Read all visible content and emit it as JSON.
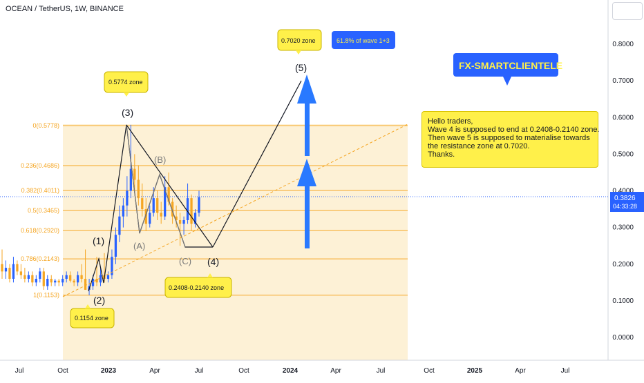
{
  "header": {
    "title": "OCEAN / TetherUS, 1W, BINANCE"
  },
  "price_axis": {
    "ticks": [
      "0.8000",
      "0.7000",
      "0.6000",
      "0.5000",
      "0.4000",
      "0.3000",
      "0.2000",
      "0.1000",
      "0.0000"
    ],
    "current_price": "0.3826",
    "countdown": "04:33:28"
  },
  "time_axis": {
    "ticks": [
      "Jul",
      "Oct",
      "2023",
      "Apr",
      "Jul",
      "Oct",
      "2024",
      "Apr",
      "Jul",
      "Oct",
      "2025",
      "Apr",
      "Jul"
    ]
  },
  "fib_levels": [
    {
      "label": "0(0.5778)",
      "value": 0.5778
    },
    {
      "label": "0.236(0.4686)",
      "value": 0.4686
    },
    {
      "label": "0.382(0.4011)",
      "value": 0.4011
    },
    {
      "label": "0.5(0.3465)",
      "value": 0.3465
    },
    {
      "label": "0.618(0.2920)",
      "value": 0.292
    },
    {
      "label": "0.786(0.2143)",
      "value": 0.2143
    },
    {
      "label": "1(0.1153)",
      "value": 0.1153
    }
  ],
  "wave_labels": {
    "w1": "(1)",
    "w2": "(2)",
    "w3": "(3)",
    "w4": "(4)",
    "w5": "(5)",
    "wa": "(A)",
    "wb": "(B)",
    "wc": "(C)"
  },
  "callouts": {
    "zone_0702": "0.7020 zone",
    "fib_618": "61.8% of wave 1+3",
    "zone_0577": "0.5774 zone",
    "zone_0115": "0.1154 zone",
    "zone_w4": "0.2408-0.2140 zone",
    "brand": "FX-SMARTCLIENTELE"
  },
  "note": {
    "lines": [
      "Hello traders,",
      "Wave 4 is supposed to end at 0.2408-0.2140 zone.",
      "Then wave 5 is supposed to materialise towards",
      "the resistance zone at 0.7020.",
      "Thanks."
    ]
  },
  "colors": {
    "up": "#26a69a",
    "up_candle": "#2962ff",
    "down": "#f5a623",
    "fib": "#f5a623",
    "fib_fill": "#fdf1d6",
    "arrow": "#2979ff",
    "callout_yellow": "#fff04a",
    "callout_blue": "#2962ff",
    "price_tag": "#2962ff"
  },
  "chart_data": {
    "type": "candlestick",
    "symbol": "OCEAN / TetherUS",
    "timeframe": "1W",
    "exchange": "BINANCE",
    "ylim": [
      0,
      0.88
    ],
    "current_price": 0.3826,
    "candles": [
      {
        "o": 0.2,
        "h": 0.24,
        "l": 0.16,
        "c": 0.18
      },
      {
        "o": 0.18,
        "h": 0.21,
        "l": 0.16,
        "c": 0.19
      },
      {
        "o": 0.19,
        "h": 0.2,
        "l": 0.15,
        "c": 0.16
      },
      {
        "o": 0.16,
        "h": 0.22,
        "l": 0.15,
        "c": 0.2
      },
      {
        "o": 0.2,
        "h": 0.21,
        "l": 0.17,
        "c": 0.18
      },
      {
        "o": 0.18,
        "h": 0.2,
        "l": 0.16,
        "c": 0.17
      },
      {
        "o": 0.17,
        "h": 0.19,
        "l": 0.15,
        "c": 0.16
      },
      {
        "o": 0.16,
        "h": 0.18,
        "l": 0.15,
        "c": 0.17
      },
      {
        "o": 0.17,
        "h": 0.18,
        "l": 0.14,
        "c": 0.15
      },
      {
        "o": 0.15,
        "h": 0.17,
        "l": 0.14,
        "c": 0.16
      },
      {
        "o": 0.16,
        "h": 0.19,
        "l": 0.15,
        "c": 0.18
      },
      {
        "o": 0.18,
        "h": 0.19,
        "l": 0.13,
        "c": 0.14
      },
      {
        "o": 0.14,
        "h": 0.17,
        "l": 0.13,
        "c": 0.16
      },
      {
        "o": 0.16,
        "h": 0.17,
        "l": 0.14,
        "c": 0.15
      },
      {
        "o": 0.15,
        "h": 0.16,
        "l": 0.14,
        "c": 0.155
      },
      {
        "o": 0.155,
        "h": 0.16,
        "l": 0.14,
        "c": 0.15
      },
      {
        "o": 0.15,
        "h": 0.17,
        "l": 0.14,
        "c": 0.16
      },
      {
        "o": 0.16,
        "h": 0.18,
        "l": 0.15,
        "c": 0.17
      },
      {
        "o": 0.17,
        "h": 0.18,
        "l": 0.15,
        "c": 0.155
      },
      {
        "o": 0.155,
        "h": 0.16,
        "l": 0.14,
        "c": 0.15
      },
      {
        "o": 0.15,
        "h": 0.18,
        "l": 0.14,
        "c": 0.17
      },
      {
        "o": 0.17,
        "h": 0.2,
        "l": 0.15,
        "c": 0.16
      },
      {
        "o": 0.16,
        "h": 0.24,
        "l": 0.13,
        "c": 0.13
      },
      {
        "o": 0.13,
        "h": 0.16,
        "l": 0.115,
        "c": 0.14
      },
      {
        "o": 0.14,
        "h": 0.17,
        "l": 0.13,
        "c": 0.16
      },
      {
        "o": 0.16,
        "h": 0.22,
        "l": 0.14,
        "c": 0.15
      },
      {
        "o": 0.15,
        "h": 0.19,
        "l": 0.14,
        "c": 0.17
      },
      {
        "o": 0.17,
        "h": 0.23,
        "l": 0.15,
        "c": 0.16
      },
      {
        "o": 0.16,
        "h": 0.18,
        "l": 0.15,
        "c": 0.17
      },
      {
        "o": 0.17,
        "h": 0.24,
        "l": 0.16,
        "c": 0.22
      },
      {
        "o": 0.22,
        "h": 0.3,
        "l": 0.2,
        "c": 0.28
      },
      {
        "o": 0.28,
        "h": 0.36,
        "l": 0.26,
        "c": 0.33
      },
      {
        "o": 0.33,
        "h": 0.38,
        "l": 0.3,
        "c": 0.36
      },
      {
        "o": 0.36,
        "h": 0.44,
        "l": 0.33,
        "c": 0.4
      },
      {
        "o": 0.4,
        "h": 0.58,
        "l": 0.38,
        "c": 0.46
      },
      {
        "o": 0.46,
        "h": 0.5,
        "l": 0.4,
        "c": 0.43
      },
      {
        "o": 0.43,
        "h": 0.47,
        "l": 0.36,
        "c": 0.38
      },
      {
        "o": 0.38,
        "h": 0.42,
        "l": 0.33,
        "c": 0.35
      },
      {
        "o": 0.35,
        "h": 0.38,
        "l": 0.29,
        "c": 0.31
      },
      {
        "o": 0.31,
        "h": 0.36,
        "l": 0.3,
        "c": 0.34
      },
      {
        "o": 0.34,
        "h": 0.41,
        "l": 0.33,
        "c": 0.38
      },
      {
        "o": 0.38,
        "h": 0.4,
        "l": 0.32,
        "c": 0.34
      },
      {
        "o": 0.34,
        "h": 0.37,
        "l": 0.31,
        "c": 0.33
      },
      {
        "o": 0.33,
        "h": 0.44,
        "l": 0.32,
        "c": 0.41
      },
      {
        "o": 0.41,
        "h": 0.45,
        "l": 0.36,
        "c": 0.37
      },
      {
        "o": 0.37,
        "h": 0.38,
        "l": 0.31,
        "c": 0.33
      },
      {
        "o": 0.33,
        "h": 0.36,
        "l": 0.3,
        "c": 0.32
      },
      {
        "o": 0.32,
        "h": 0.34,
        "l": 0.25,
        "c": 0.31
      },
      {
        "o": 0.31,
        "h": 0.33,
        "l": 0.28,
        "c": 0.32
      },
      {
        "o": 0.32,
        "h": 0.42,
        "l": 0.31,
        "c": 0.38
      },
      {
        "o": 0.38,
        "h": 0.39,
        "l": 0.29,
        "c": 0.31
      },
      {
        "o": 0.31,
        "h": 0.35,
        "l": 0.3,
        "c": 0.34
      },
      {
        "o": 0.34,
        "h": 0.4,
        "l": 0.33,
        "c": 0.3826
      }
    ],
    "projection": [
      {
        "label": "(4)",
        "value": 0.24
      },
      {
        "label": "(5)",
        "value": 0.7
      }
    ]
  }
}
